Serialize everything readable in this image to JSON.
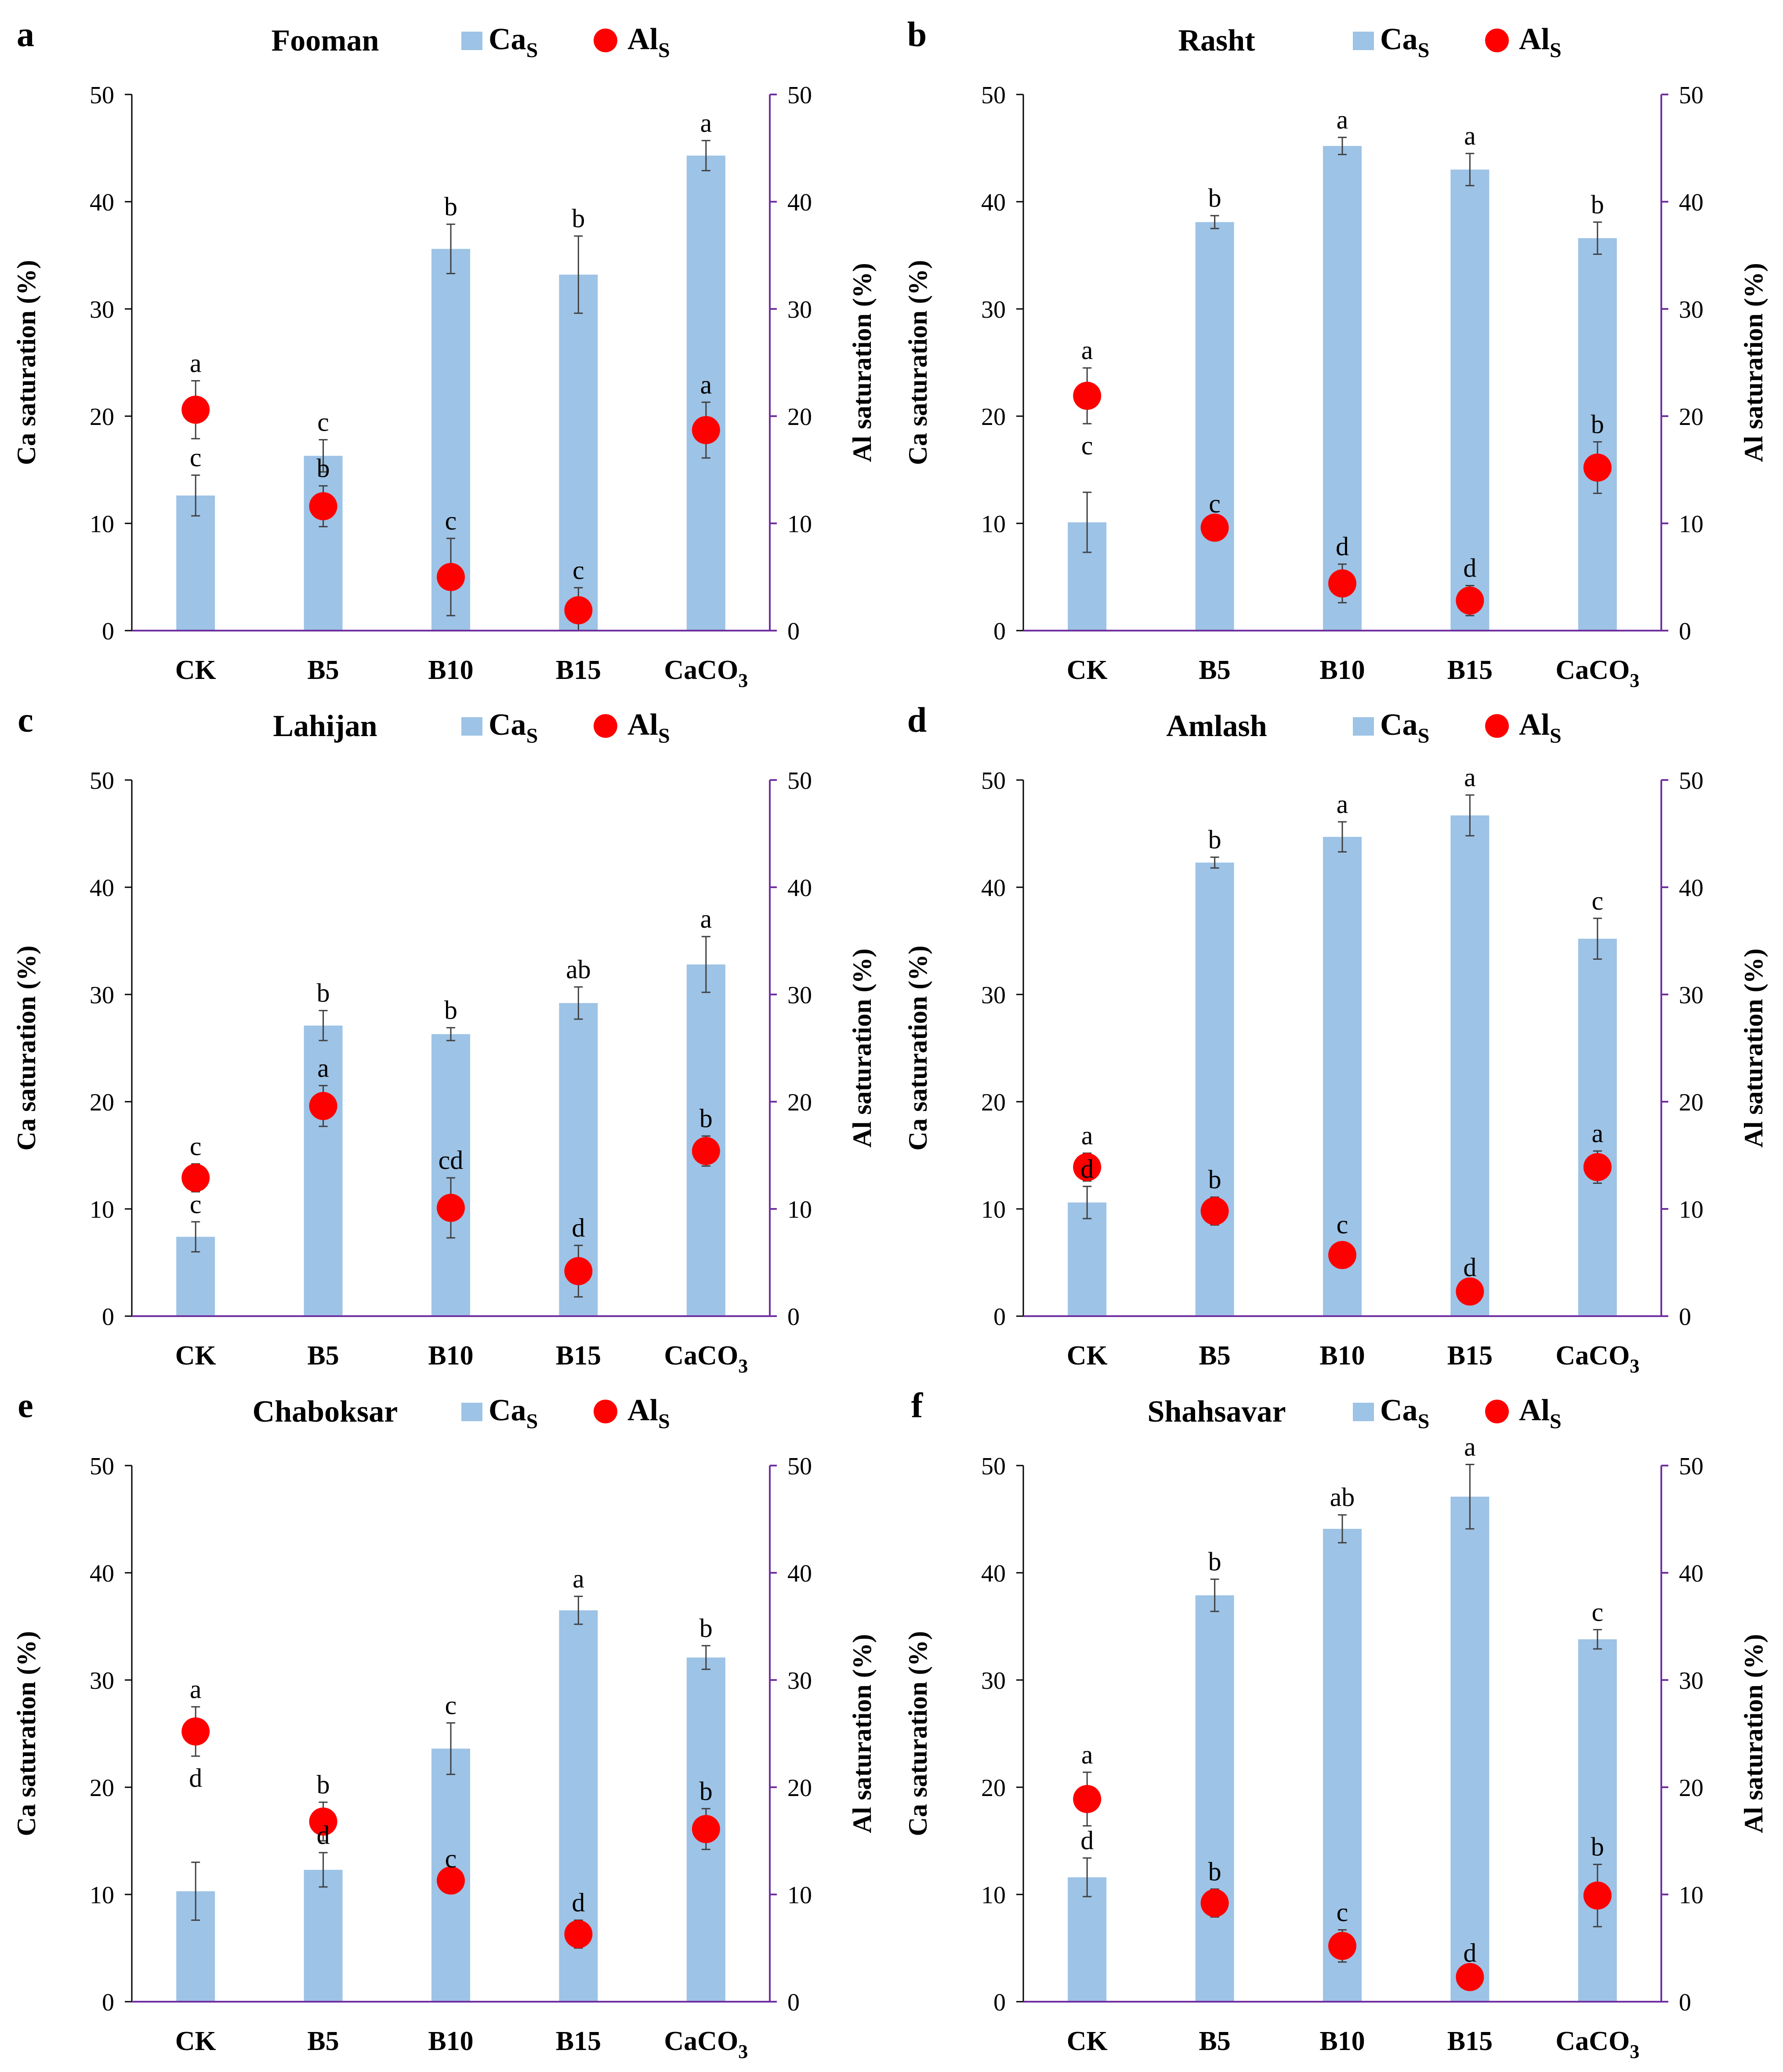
{
  "figure": {
    "series_legend": {
      "ca_label": "Ca",
      "ca_sub": "S",
      "al_label": "Al",
      "al_sub": "S"
    },
    "colors": {
      "bar": "#9DC3E6",
      "dot": "#FF0000",
      "right_axis": "#7030A0",
      "left_axis": "#000000"
    }
  },
  "chart_data": [
    {
      "panel": "a",
      "title": "Fooman",
      "type": "bar",
      "categories": [
        "CK",
        "B5",
        "B10",
        "B15",
        "CaCO3"
      ],
      "category_labels": [
        {
          "main": "CK",
          "sub": ""
        },
        {
          "main": "B5",
          "sub": ""
        },
        {
          "main": "B10",
          "sub": ""
        },
        {
          "main": "B15",
          "sub": ""
        },
        {
          "main": "CaCO",
          "sub": "3"
        }
      ],
      "ylabel_left": "Ca saturation (%)",
      "ylabel_right": "Al saturation (%)",
      "ylim": [
        0,
        50
      ],
      "yticks": [
        "0",
        "10",
        "20",
        "30",
        "40",
        "50"
      ],
      "series": [
        {
          "name": "CaS",
          "type": "bar",
          "values": [
            12.6,
            16.3,
            35.6,
            33.2,
            44.3
          ],
          "errors": [
            1.9,
            1.5,
            2.3,
            3.6,
            1.4
          ],
          "letters": [
            "c",
            "c",
            "b",
            "b",
            "a"
          ]
        },
        {
          "name": "AlS",
          "type": "scatter",
          "values": [
            20.6,
            11.6,
            5.0,
            1.9,
            18.7
          ],
          "errors": [
            2.7,
            1.9,
            3.6,
            2.1,
            2.6
          ],
          "letters": [
            "a",
            "b",
            "c",
            "c",
            "a"
          ]
        }
      ]
    },
    {
      "panel": "b",
      "title": "Rasht",
      "type": "bar",
      "categories": [
        "CK",
        "B5",
        "B10",
        "B15",
        "CaCO3"
      ],
      "category_labels": [
        {
          "main": "CK",
          "sub": ""
        },
        {
          "main": "B5",
          "sub": ""
        },
        {
          "main": "B10",
          "sub": ""
        },
        {
          "main": "B15",
          "sub": ""
        },
        {
          "main": "CaCO",
          "sub": "3"
        }
      ],
      "ylabel_left": "Ca saturation (%)",
      "ylabel_right": "Al saturation (%)",
      "ylim": [
        0,
        50
      ],
      "yticks": [
        "0",
        "10",
        "20",
        "30",
        "40",
        "50"
      ],
      "series": [
        {
          "name": "CaS",
          "type": "bar",
          "values": [
            10.1,
            38.1,
            45.2,
            43.0,
            36.6
          ],
          "errors": [
            2.8,
            0.6,
            0.8,
            1.5,
            1.5
          ],
          "letters": [
            "c",
            "b",
            "a",
            "a",
            "b"
          ]
        },
        {
          "name": "AlS",
          "type": "scatter",
          "values": [
            21.9,
            9.6,
            4.4,
            2.8,
            15.2
          ],
          "errors": [
            2.6,
            0.6,
            1.8,
            1.4,
            2.4
          ],
          "letters": [
            "a",
            "c",
            "d",
            "d",
            "b"
          ]
        }
      ]
    },
    {
      "panel": "c",
      "title": "Lahijan",
      "type": "bar",
      "categories": [
        "CK",
        "B5",
        "B10",
        "B15",
        "CaCO3"
      ],
      "category_labels": [
        {
          "main": "CK",
          "sub": ""
        },
        {
          "main": "B5",
          "sub": ""
        },
        {
          "main": "B10",
          "sub": ""
        },
        {
          "main": "B15",
          "sub": ""
        },
        {
          "main": "CaCO",
          "sub": "3"
        }
      ],
      "ylabel_left": "Ca saturation (%)",
      "ylabel_right": "Al saturation (%)",
      "ylim": [
        0,
        50
      ],
      "yticks": [
        "0",
        "10",
        "20",
        "30",
        "40",
        "50"
      ],
      "series": [
        {
          "name": "CaS",
          "type": "bar",
          "values": [
            7.4,
            27.1,
            26.3,
            29.2,
            32.8
          ],
          "errors": [
            1.4,
            1.4,
            0.6,
            1.5,
            2.6
          ],
          "letters": [
            "c",
            "b",
            "b",
            "ab",
            "a"
          ]
        },
        {
          "name": "AlS",
          "type": "scatter",
          "values": [
            12.9,
            19.6,
            10.1,
            4.2,
            15.4
          ],
          "errors": [
            1.3,
            1.9,
            2.8,
            2.4,
            1.4
          ],
          "letters": [
            "c",
            "a",
            "cd",
            "d",
            "b"
          ]
        }
      ]
    },
    {
      "panel": "d",
      "title": "Amlash",
      "type": "bar",
      "categories": [
        "CK",
        "B5",
        "B10",
        "B15",
        "CaCO3"
      ],
      "category_labels": [
        {
          "main": "CK",
          "sub": ""
        },
        {
          "main": "B5",
          "sub": ""
        },
        {
          "main": "B10",
          "sub": ""
        },
        {
          "main": "B15",
          "sub": ""
        },
        {
          "main": "CaCO",
          "sub": "3"
        }
      ],
      "ylabel_left": "Ca saturation (%)",
      "ylabel_right": "Al saturation (%)",
      "ylim": [
        0,
        50
      ],
      "yticks": [
        "0",
        "10",
        "20",
        "30",
        "40",
        "50"
      ],
      "series": [
        {
          "name": "CaS",
          "type": "bar",
          "values": [
            10.6,
            42.3,
            44.7,
            46.7,
            35.2
          ],
          "errors": [
            1.5,
            0.5,
            1.4,
            1.9,
            1.9
          ],
          "letters": [
            "d",
            "b",
            "a",
            "a",
            "c"
          ]
        },
        {
          "name": "AlS",
          "type": "scatter",
          "values": [
            13.9,
            9.8,
            5.7,
            2.3,
            13.9
          ],
          "errors": [
            1.3,
            1.3,
            1.2,
            0.6,
            1.5
          ],
          "letters": [
            "a",
            "b",
            "c",
            "d",
            "a"
          ]
        }
      ]
    },
    {
      "panel": "e",
      "title": "Chaboksar",
      "type": "bar",
      "categories": [
        "CK",
        "B5",
        "B10",
        "B15",
        "CaCO3"
      ],
      "category_labels": [
        {
          "main": "CK",
          "sub": ""
        },
        {
          "main": "B5",
          "sub": ""
        },
        {
          "main": "B10",
          "sub": ""
        },
        {
          "main": "B15",
          "sub": ""
        },
        {
          "main": "CaCO",
          "sub": "3"
        }
      ],
      "ylabel_left": "Ca saturation (%)",
      "ylabel_right": "Al saturation (%)",
      "ylim": [
        0,
        50
      ],
      "yticks": [
        "0",
        "10",
        "20",
        "30",
        "40",
        "50"
      ],
      "series": [
        {
          "name": "CaS",
          "type": "bar",
          "values": [
            10.3,
            12.3,
            23.6,
            36.5,
            32.1
          ],
          "errors": [
            2.7,
            1.6,
            2.4,
            1.3,
            1.1
          ],
          "letters": [
            "d",
            "d",
            "c",
            "a",
            "b"
          ]
        },
        {
          "name": "AlS",
          "type": "scatter",
          "values": [
            25.2,
            16.8,
            11.3,
            6.3,
            16.1
          ],
          "errors": [
            2.3,
            1.8,
            0.4,
            1.3,
            1.9
          ],
          "letters": [
            "a",
            "b",
            "c",
            "d",
            "b"
          ]
        }
      ]
    },
    {
      "panel": "f",
      "title": "Shahsavar",
      "type": "bar",
      "categories": [
        "CK",
        "B5",
        "B10",
        "B15",
        "CaCO3"
      ],
      "category_labels": [
        {
          "main": "CK",
          "sub": ""
        },
        {
          "main": "B5",
          "sub": ""
        },
        {
          "main": "B10",
          "sub": ""
        },
        {
          "main": "B15",
          "sub": ""
        },
        {
          "main": "CaCO",
          "sub": "3"
        }
      ],
      "ylabel_left": "Ca saturation (%)",
      "ylabel_right": "Al saturation (%)",
      "ylim": [
        0,
        50
      ],
      "yticks": [
        "0",
        "10",
        "20",
        "30",
        "40",
        "50"
      ],
      "series": [
        {
          "name": "CaS",
          "type": "bar",
          "values": [
            11.6,
            37.9,
            44.1,
            47.1,
            33.8
          ],
          "errors": [
            1.8,
            1.5,
            1.3,
            3.0,
            0.9
          ],
          "letters": [
            "d",
            "b",
            "ab",
            "a",
            "c"
          ]
        },
        {
          "name": "AlS",
          "type": "scatter",
          "values": [
            18.9,
            9.2,
            5.2,
            2.3,
            9.9
          ],
          "errors": [
            2.5,
            1.3,
            1.5,
            0.6,
            2.9
          ],
          "letters": [
            "a",
            "b",
            "c",
            "d",
            "b"
          ]
        }
      ]
    }
  ]
}
